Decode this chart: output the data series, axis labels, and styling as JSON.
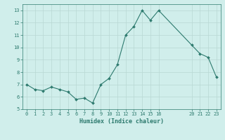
{
  "x": [
    0,
    1,
    2,
    3,
    4,
    5,
    6,
    7,
    8,
    9,
    10,
    11,
    12,
    13,
    14,
    15,
    16,
    20,
    21,
    22,
    23
  ],
  "y": [
    7.0,
    6.6,
    6.5,
    6.8,
    6.6,
    6.4,
    5.8,
    5.9,
    5.5,
    7.0,
    7.5,
    8.6,
    11.0,
    11.7,
    13.0,
    12.2,
    13.0,
    10.2,
    9.5,
    9.2,
    7.6
  ],
  "line_color": "#2d7a6e",
  "marker_color": "#2d7a6e",
  "bg_color": "#d0eeeb",
  "grid_color": "#b8d8d4",
  "xlabel": "Humidex (Indice chaleur)",
  "xlim": [
    -0.5,
    23.5
  ],
  "ylim": [
    5,
    13.5
  ],
  "yticks": [
    5,
    6,
    7,
    8,
    9,
    10,
    11,
    12,
    13
  ],
  "xticks": [
    0,
    1,
    2,
    3,
    4,
    5,
    6,
    7,
    8,
    9,
    10,
    11,
    12,
    13,
    14,
    15,
    16,
    20,
    21,
    22,
    23
  ],
  "tick_label_color": "#2d7a6e",
  "xlabel_fontsize": 6.0,
  "tick_fontsize": 5.0
}
